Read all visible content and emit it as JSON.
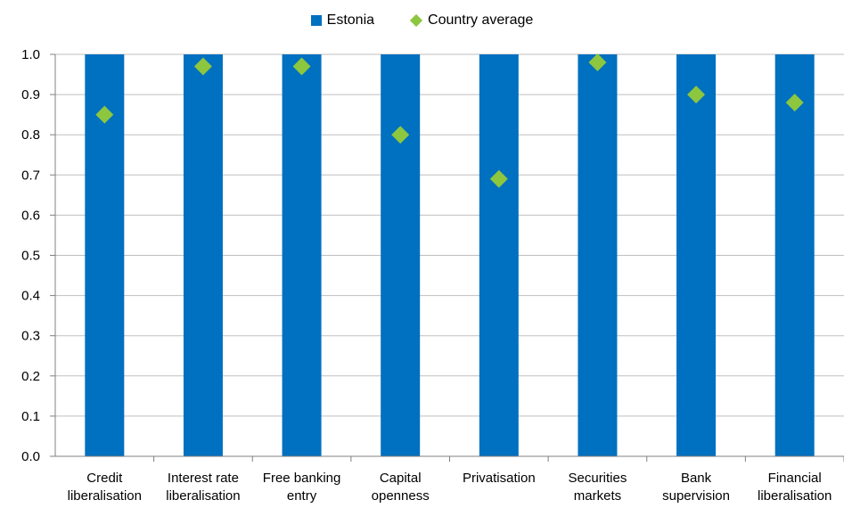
{
  "chart_data": {
    "type": "bar",
    "categories": [
      [
        "Credit",
        "liberalisation"
      ],
      [
        "Interest rate",
        "liberalisation"
      ],
      [
        "Free banking",
        "entry"
      ],
      [
        "Capital",
        "openness"
      ],
      [
        "Privatisation"
      ],
      [
        "Securities",
        "markets"
      ],
      [
        "Bank",
        "supervision"
      ],
      [
        "Financial",
        "liberalisation"
      ]
    ],
    "series": [
      {
        "name": "Estonia",
        "kind": "bar",
        "color": "#0070C0",
        "values": [
          1.0,
          1.0,
          1.0,
          1.0,
          1.0,
          1.0,
          1.0,
          1.0
        ]
      },
      {
        "name": "Country average",
        "kind": "marker-diamond",
        "color": "#8DC63F",
        "values": [
          0.85,
          0.97,
          0.97,
          0.8,
          0.69,
          0.98,
          0.9,
          0.88
        ]
      }
    ],
    "ylim": [
      0.0,
      1.0
    ],
    "yticks": [
      "0.0",
      "0.1",
      "0.2",
      "0.3",
      "0.4",
      "0.5",
      "0.6",
      "0.7",
      "0.8",
      "0.9",
      "1.0"
    ],
    "grid": true,
    "legend_position": "top-center",
    "title": "",
    "xlabel": "",
    "ylabel": ""
  }
}
